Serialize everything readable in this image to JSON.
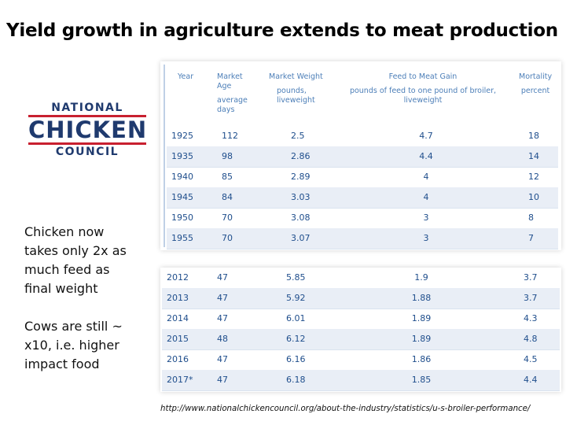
{
  "title": "Yield growth in agriculture extends to meat production",
  "logo": {
    "line1": "NATIONAL",
    "line2": "CHICKEN",
    "line3": "COUNCIL",
    "colors": {
      "blue": "#1f3a6e",
      "red": "#c8202f"
    }
  },
  "notes": {
    "chicken": "Chicken now takes only 2x as much feed as final weight",
    "cows": "Cows are still ~ x10, i.e. higher impact food"
  },
  "table": {
    "headers": {
      "year": "Year",
      "age_title_1": "Market",
      "age_title_2": "Age",
      "age_unit_1": "average",
      "age_unit_2": "days",
      "weight_title": "Market Weight",
      "weight_unit_1": "pounds,",
      "weight_unit_2": "liveweight",
      "feed_title": "Feed to Meat Gain",
      "feed_unit_1": "pounds of feed to one pound of broiler,",
      "feed_unit_2": "liveweight",
      "mort_title": "Mortality",
      "mort_unit": "percent"
    },
    "historic": [
      {
        "year": "1925",
        "age": "112",
        "weight": "2.5",
        "feed": "4.7",
        "mortality": "18"
      },
      {
        "year": "1935",
        "age": "98",
        "weight": "2.86",
        "feed": "4.4",
        "mortality": "14"
      },
      {
        "year": "1940",
        "age": "85",
        "weight": "2.89",
        "feed": "4",
        "mortality": "12"
      },
      {
        "year": "1945",
        "age": "84",
        "weight": "3.03",
        "feed": "4",
        "mortality": "10"
      },
      {
        "year": "1950",
        "age": "70",
        "weight": "3.08",
        "feed": "3",
        "mortality": "8"
      },
      {
        "year": "1955",
        "age": "70",
        "weight": "3.07",
        "feed": "3",
        "mortality": "7"
      }
    ],
    "recent": [
      {
        "year": "2012",
        "age": "47",
        "weight": "5.85",
        "feed": "1.9",
        "mortality": "3.7"
      },
      {
        "year": "2013",
        "age": "47",
        "weight": "5.92",
        "feed": "1.88",
        "mortality": "3.7"
      },
      {
        "year": "2014",
        "age": "47",
        "weight": "6.01",
        "feed": "1.89",
        "mortality": "4.3"
      },
      {
        "year": "2015",
        "age": "48",
        "weight": "6.12",
        "feed": "1.89",
        "mortality": "4.8"
      },
      {
        "year": "2016",
        "age": "47",
        "weight": "6.16",
        "feed": "1.86",
        "mortality": "4.5"
      },
      {
        "year": "2017*",
        "age": "47",
        "weight": "6.18",
        "feed": "1.85",
        "mortality": "4.4"
      }
    ]
  },
  "source_url": "http://www.nationalchickencouncil.org/about-the-industry/statistics/u-s-broiler-performance/"
}
